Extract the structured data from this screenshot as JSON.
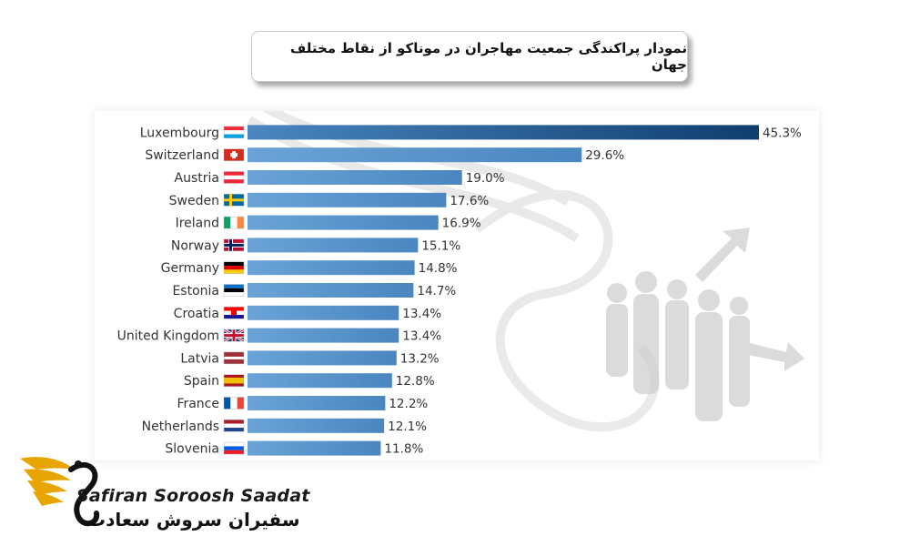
{
  "page": {
    "title": "نمودار پراکندگی جمعیت مهاجران در موناکو از نقاط مختلف جهان"
  },
  "brand": {
    "name_en": "Safiran Soroosh Saadat",
    "name_fa": "سفیران سروش سعادت"
  },
  "colors": {
    "bar": "#4a86c0",
    "bar_top": "#0f3e6e",
    "logo_gold": "#e8a400"
  },
  "chart_data": {
    "type": "bar",
    "orientation": "horizontal",
    "categories": [
      "Luxembourg",
      "Switzerland",
      "Austria",
      "Sweden",
      "Ireland",
      "Norway",
      "Germany",
      "Estonia",
      "Croatia",
      "United Kingdom",
      "Latvia",
      "Spain",
      "France",
      "Netherlands",
      "Slovenia"
    ],
    "flags": [
      "luxembourg-flag-icon",
      "switzerland-flag-icon",
      "austria-flag-icon",
      "sweden-flag-icon",
      "ireland-flag-icon",
      "norway-flag-icon",
      "germany-flag-icon",
      "estonia-flag-icon",
      "croatia-flag-icon",
      "uk-flag-icon",
      "latvia-flag-icon",
      "spain-flag-icon",
      "france-flag-icon",
      "netherlands-flag-icon",
      "slovenia-flag-icon"
    ],
    "values": [
      45.3,
      29.6,
      19.0,
      17.6,
      16.9,
      15.1,
      14.8,
      14.7,
      13.4,
      13.4,
      13.2,
      12.8,
      12.2,
      12.1,
      11.8
    ],
    "value_labels": [
      "45.3%",
      "29.6%",
      "19.0%",
      "17.6%",
      "16.9%",
      "15.1%",
      "14.8%",
      "14.7%",
      "13.4%",
      "13.4%",
      "13.2%",
      "12.8%",
      "12.2%",
      "12.1%",
      "11.8%"
    ],
    "unit": "%",
    "xlim": [
      0,
      45.3
    ],
    "grid": false,
    "legend": false
  }
}
